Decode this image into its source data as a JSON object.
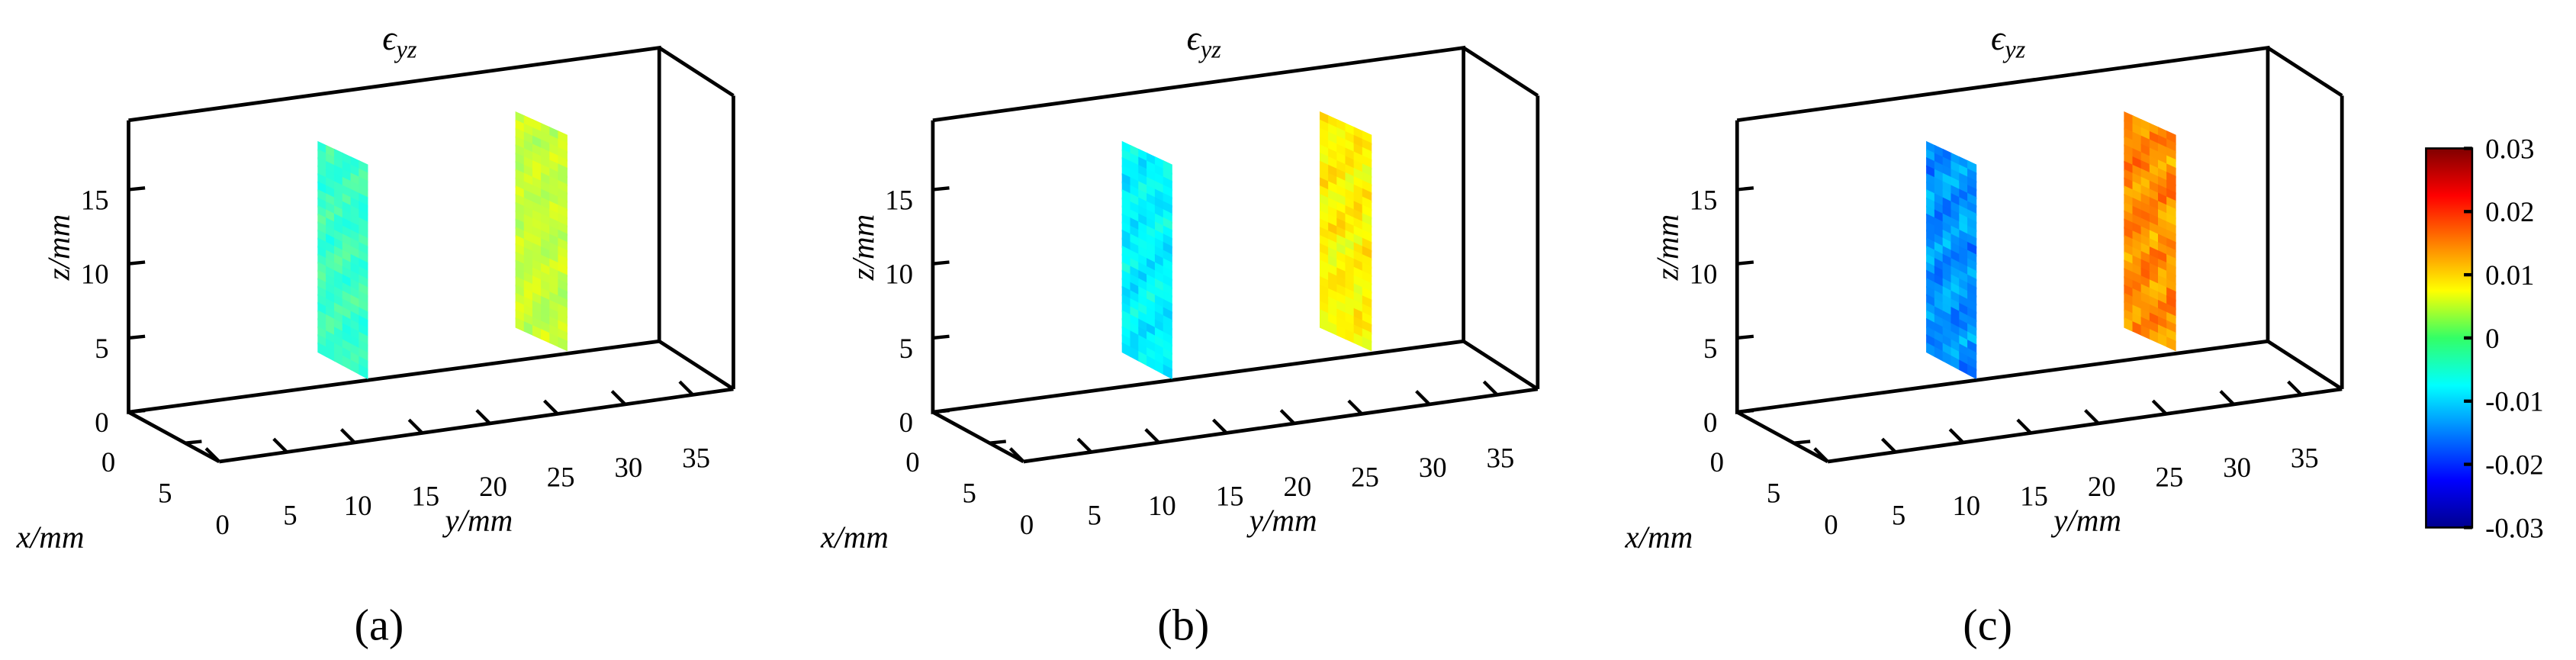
{
  "panels": [
    {
      "caption": "(a)",
      "title": "ϵ",
      "title_sub": "yz",
      "xlabel": "x/mm",
      "ylabel": "y/mm",
      "zlabel": "z/mm",
      "x_ticks": [
        "0",
        "5"
      ],
      "y_ticks": [
        "0",
        "5",
        "10",
        "15",
        "20",
        "25",
        "30",
        "35"
      ],
      "z_ticks": [
        "0",
        "5",
        "10",
        "15"
      ],
      "slices": [
        {
          "y": 10,
          "mean_value": -0.004,
          "variation": 0.0025
        },
        {
          "y": 22,
          "mean_value": 0.004,
          "variation": 0.0025
        }
      ]
    },
    {
      "caption": "(b)",
      "title": "ϵ",
      "title_sub": "yz",
      "xlabel": "x/mm",
      "ylabel": "y/mm",
      "zlabel": "z/mm",
      "x_ticks": [
        "0",
        "5"
      ],
      "y_ticks": [
        "0",
        "5",
        "10",
        "15",
        "20",
        "25",
        "30",
        "35"
      ],
      "z_ticks": [
        "0",
        "5",
        "10",
        "15"
      ],
      "slices": [
        {
          "y": 10,
          "mean_value": -0.008,
          "variation": 0.003
        },
        {
          "y": 22,
          "mean_value": 0.008,
          "variation": 0.003
        }
      ]
    },
    {
      "caption": "(c)",
      "title": "ϵ",
      "title_sub": "yz",
      "xlabel": "x/mm",
      "ylabel": "y/mm",
      "zlabel": "z/mm",
      "x_ticks": [
        "0",
        "5"
      ],
      "y_ticks": [
        "0",
        "5",
        "10",
        "15",
        "20",
        "25",
        "30",
        "35"
      ],
      "z_ticks": [
        "0",
        "5",
        "10",
        "15"
      ],
      "slices": [
        {
          "y": 10,
          "mean_value": -0.014,
          "variation": 0.004
        },
        {
          "y": 22,
          "mean_value": 0.014,
          "variation": 0.004
        }
      ]
    }
  ],
  "colorbar": {
    "ticks": [
      "0.03",
      "0.02",
      "0.01",
      "0",
      "-0.01",
      "-0.02",
      "-0.03"
    ],
    "min": -0.03,
    "max": 0.03,
    "colormap": "jet"
  },
  "chart_data": [
    {
      "type": "heatmap",
      "title": "ϵyz",
      "xlabel": "x/mm",
      "ylabel": "y/mm",
      "zlabel": "z/mm",
      "xlim": [
        0,
        8
      ],
      "ylim": [
        0,
        38
      ],
      "zlim": [
        0,
        20
      ],
      "grid": false,
      "series": [
        {
          "slice_at_y": 10,
          "approx_value": -0.004
        },
        {
          "slice_at_y": 22,
          "approx_value": 0.004
        }
      ],
      "color_range": [
        -0.03,
        0.03
      ]
    },
    {
      "type": "heatmap",
      "title": "ϵyz",
      "xlabel": "x/mm",
      "ylabel": "y/mm",
      "zlabel": "z/mm",
      "xlim": [
        0,
        8
      ],
      "ylim": [
        0,
        38
      ],
      "zlim": [
        0,
        20
      ],
      "grid": false,
      "series": [
        {
          "slice_at_y": 10,
          "approx_value": -0.008
        },
        {
          "slice_at_y": 22,
          "approx_value": 0.008
        }
      ],
      "color_range": [
        -0.03,
        0.03
      ]
    },
    {
      "type": "heatmap",
      "title": "ϵyz",
      "xlabel": "x/mm",
      "ylabel": "y/mm",
      "zlabel": "z/mm",
      "xlim": [
        0,
        8
      ],
      "ylim": [
        0,
        38
      ],
      "zlim": [
        0,
        20
      ],
      "grid": false,
      "series": [
        {
          "slice_at_y": 10,
          "approx_value": -0.014
        },
        {
          "slice_at_y": 22,
          "approx_value": 0.014
        }
      ],
      "color_range": [
        -0.03,
        0.03
      ]
    }
  ]
}
